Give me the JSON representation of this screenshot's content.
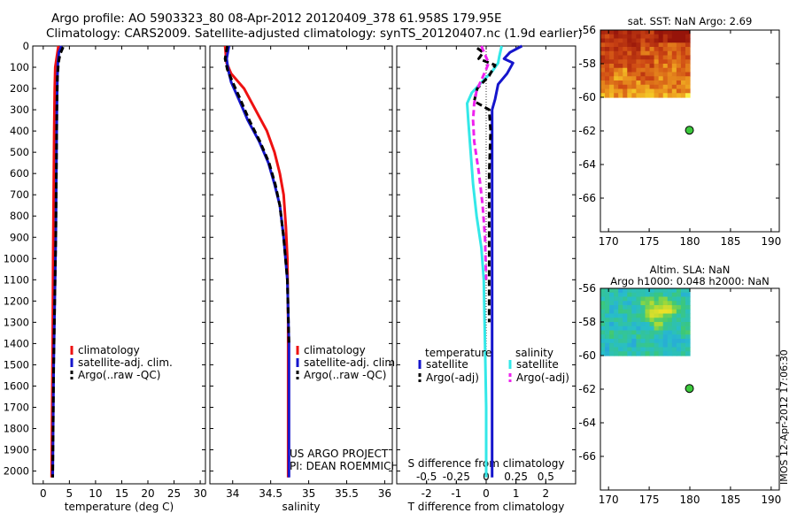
{
  "header": {
    "line1": "Argo profile: AO 5903323_80 08-Apr-2012 20120409_378 61.958S 179.95E",
    "line2": "Climatology: CARS2009. Satellite-adjusted climatology: synTS_20120407.nc (1.9d earlier)"
  },
  "colors": {
    "climatology": "#ee1111",
    "satellite": "#1515cc",
    "argo": "#000000",
    "sat_diff_S": "#33e8e8",
    "argo_diff_S": "#ee22ee"
  },
  "depth_ticks": [
    "0",
    "100",
    "200",
    "300",
    "400",
    "500",
    "600",
    "700",
    "800",
    "900",
    "1000",
    "1100",
    "1200",
    "1300",
    "1400",
    "1500",
    "1600",
    "1700",
    "1800",
    "1900",
    "2000"
  ],
  "chart_data": [
    {
      "type": "line",
      "xlabel": "temperature (deg C)",
      "xlim": [
        -2,
        31
      ],
      "ylim": [
        2060,
        0
      ],
      "xticks": [
        "0",
        "5",
        "10",
        "15",
        "20",
        "25",
        "30"
      ],
      "legend": [
        "climatology",
        "satellite-adj. clim.",
        "Argo(..raw -QC)"
      ],
      "series": [
        {
          "name": "climatology",
          "color_key": "climatology",
          "dashed": false,
          "x": [
            2.9,
            2.6,
            2.3,
            2.2,
            2.1,
            2.0,
            1.9,
            1.8,
            1.7,
            1.6
          ],
          "y": [
            0,
            50,
            100,
            200,
            400,
            700,
            1000,
            1400,
            1700,
            2030
          ]
        },
        {
          "name": "satellite-adj. clim.",
          "color_key": "satellite",
          "dashed": false,
          "x": [
            3.5,
            3.0,
            2.8,
            2.7,
            2.6,
            2.5,
            2.4,
            2.2,
            2.0,
            1.9,
            1.8
          ],
          "y": [
            0,
            30,
            80,
            150,
            300,
            600,
            900,
            1200,
            1500,
            1800,
            2030
          ]
        },
        {
          "name": "Argo(..raw -QC)",
          "color_key": "argo",
          "dashed": true,
          "x": [
            3.8,
            3.2,
            2.9,
            2.7,
            2.6,
            2.5,
            2.4,
            2.2,
            2.0,
            1.9,
            1.8
          ],
          "y": [
            5,
            40,
            80,
            150,
            300,
            600,
            900,
            1200,
            1500,
            1800,
            2030
          ]
        }
      ]
    },
    {
      "type": "line",
      "xlabel": "salinity",
      "xlim": [
        33.7,
        36.1
      ],
      "ylim": [
        2060,
        0
      ],
      "xticks": [
        "34",
        "34.5",
        "35",
        "35.5",
        "36"
      ],
      "legend": [
        "climatology",
        "satellite-adj. clim.",
        "Argo(..raw -QC)"
      ],
      "annotation": [
        "US ARGO PROJECT",
        "PI: DEAN ROEMMICH"
      ],
      "series": [
        {
          "name": "climatology",
          "color_key": "climatology",
          "dashed": false,
          "x": [
            33.9,
            33.92,
            33.98,
            34.15,
            34.3,
            34.45,
            34.55,
            34.62,
            34.67,
            34.7,
            34.72,
            34.73,
            34.73,
            34.73
          ],
          "y": [
            0,
            80,
            130,
            200,
            300,
            400,
            500,
            600,
            700,
            850,
            1000,
            1300,
            1700,
            2030
          ]
        },
        {
          "name": "satellite-adj. clim.",
          "color_key": "satellite",
          "dashed": false,
          "x": [
            33.95,
            33.92,
            33.94,
            33.98,
            34.08,
            34.2,
            34.35,
            34.47,
            34.55,
            34.62,
            34.67,
            34.72,
            34.74,
            34.74,
            34.74
          ],
          "y": [
            0,
            60,
            110,
            170,
            250,
            350,
            450,
            550,
            650,
            750,
            900,
            1100,
            1400,
            1700,
            2030
          ]
        },
        {
          "name": "Argo(..raw -QC)",
          "color_key": "argo",
          "dashed": true,
          "x": [
            33.93,
            33.9,
            33.93,
            34.0,
            34.1,
            34.22,
            34.36,
            34.48,
            34.56,
            34.62,
            34.67,
            34.72,
            34.74
          ],
          "y": [
            0,
            60,
            110,
            170,
            250,
            350,
            450,
            550,
            650,
            750,
            900,
            1100,
            1400
          ]
        }
      ]
    },
    {
      "type": "line",
      "xlabel": "T difference from climatology",
      "xlabel_top": "S difference from climatology",
      "xlim": [
        -3,
        3
      ],
      "ylim": [
        2060,
        0
      ],
      "xticks": [
        "-2",
        "-1",
        "0",
        "1",
        "2"
      ],
      "xticks_top": [
        "-0.5",
        "-0.25",
        "0",
        "0.25",
        "0.5"
      ],
      "legend_T_title": "temperature",
      "legend_S_title": "salinity",
      "legend_T": [
        "satellite",
        "Argo(-adj)"
      ],
      "legend_S": [
        "satellite",
        "Argo(-adj)"
      ],
      "series": [
        {
          "name": "satellite",
          "group": "temperature",
          "color_key": "satellite",
          "dashed": false,
          "x": [
            1.2,
            0.8,
            0.6,
            0.9,
            0.7,
            0.4,
            0.3,
            0.2,
            0.2,
            0.2,
            0.2,
            0.2,
            0.2,
            0.2,
            0.2
          ],
          "y": [
            0,
            30,
            60,
            80,
            130,
            180,
            250,
            300,
            400,
            600,
            900,
            1200,
            1500,
            1800,
            2030
          ]
        },
        {
          "name": "Argo(-adj)",
          "group": "temperature",
          "color_key": "argo",
          "dashed": true,
          "x": [
            -0.3,
            -0.1,
            -0.25,
            0.3,
            0.1,
            -0.3,
            -0.4,
            0.1,
            0.15,
            0.1,
            0.1,
            0.1
          ],
          "y": [
            10,
            30,
            60,
            90,
            140,
            200,
            260,
            300,
            400,
            600,
            900,
            1300
          ]
        },
        {
          "name": "satellite",
          "group": "salinity",
          "color_key": "sat_diff_S",
          "dashed": false,
          "x": [
            0.13,
            0.11,
            0.1,
            0.05,
            -0.02,
            -0.12,
            -0.16,
            -0.15,
            -0.13,
            -0.11,
            -0.08,
            -0.04,
            -0.02,
            -0.01,
            0,
            0
          ],
          "y": [
            0,
            50,
            80,
            120,
            160,
            220,
            270,
            350,
            500,
            650,
            800,
            950,
            1100,
            1400,
            1700,
            2030
          ]
        },
        {
          "name": "Argo(-adj)",
          "group": "salinity",
          "color_key": "argo_diff_S",
          "dashed": true,
          "x": [
            -0.04,
            0.02,
            0.0,
            -0.04,
            -0.08,
            -0.1,
            -0.11,
            -0.1,
            -0.06,
            -0.03,
            -0.01,
            0
          ],
          "y": [
            0,
            80,
            110,
            160,
            210,
            270,
            350,
            450,
            600,
            750,
            900,
            1100
          ]
        }
      ]
    },
    {
      "type": "heatmap",
      "title": "sat. SST: NaN Argo: 2.69",
      "xlim": [
        169,
        191
      ],
      "ylim": [
        -68,
        -56
      ],
      "xticks": [
        "170",
        "175",
        "180",
        "185",
        "190"
      ],
      "yticks": [
        "-56",
        "-58",
        "-60",
        "-62",
        "-64",
        "-66"
      ],
      "region": {
        "lon": [
          169,
          180
        ],
        "lat": [
          -60,
          -56
        ]
      },
      "palette": "sst",
      "marker": {
        "lon": 179.95,
        "lat": -61.958
      }
    },
    {
      "type": "heatmap",
      "title": "Altim. SLA: NaN",
      "subtitle": "Argo h1000: 0.048 h2000: NaN",
      "xlim": [
        169,
        191
      ],
      "ylim": [
        -68,
        -56
      ],
      "xticks": [
        "170",
        "175",
        "180",
        "185",
        "190"
      ],
      "yticks": [
        "-56",
        "-58",
        "-60",
        "-62",
        "-64",
        "-66"
      ],
      "region": {
        "lon": [
          169,
          180
        ],
        "lat": [
          -60,
          -56
        ]
      },
      "palette": "sla",
      "marker": {
        "lon": 179.95,
        "lat": -61.958
      }
    }
  ],
  "footer_stamp": "IMOS 12-Apr-2012 17:06:30"
}
